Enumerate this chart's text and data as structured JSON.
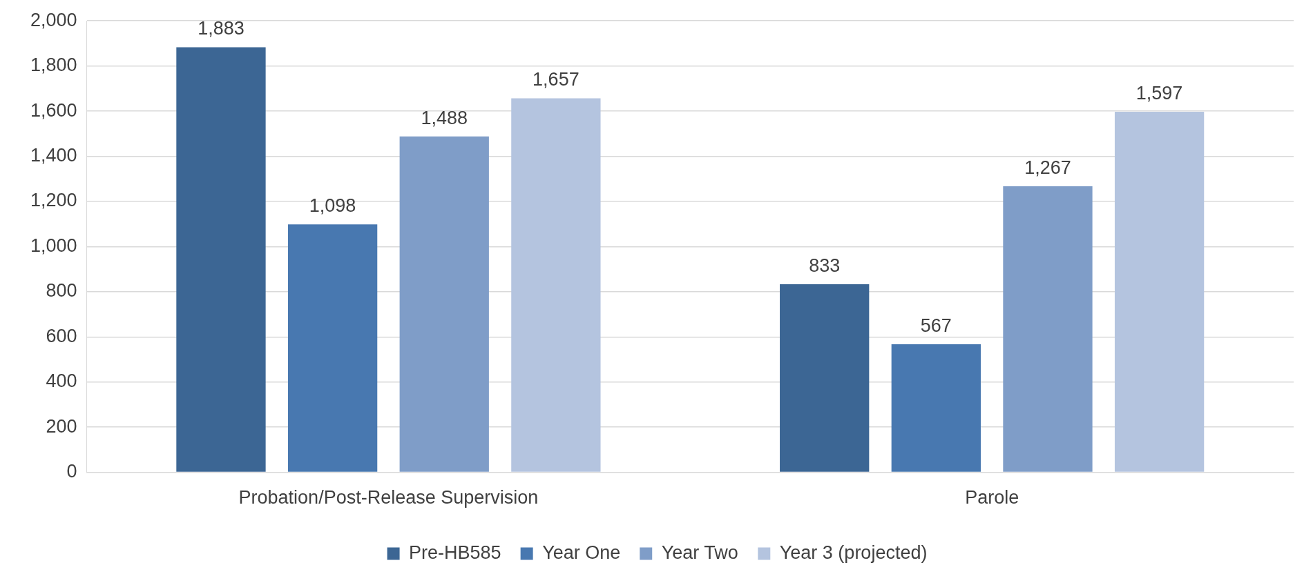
{
  "chart_data": {
    "type": "bar",
    "categories": [
      "Probation/Post-Release Supervision",
      "Parole"
    ],
    "series": [
      {
        "name": "Pre-HB585",
        "color": "#3c6694",
        "values": [
          1883,
          833
        ],
        "value_labels": [
          "1,883",
          "833"
        ]
      },
      {
        "name": "Year One",
        "color": "#4878b0",
        "values": [
          1098,
          567
        ],
        "value_labels": [
          "1,098",
          "567"
        ]
      },
      {
        "name": "Year Two",
        "color": "#7f9dc8",
        "values": [
          1488,
          1267
        ],
        "value_labels": [
          "1,488",
          "1,267"
        ]
      },
      {
        "name": "Year 3 (projected)",
        "color": "#b4c4df",
        "values": [
          1657,
          1597
        ],
        "value_labels": [
          "1,657",
          "1,597"
        ]
      }
    ],
    "ylim": [
      0,
      2000
    ],
    "yticks": [
      0,
      200,
      400,
      600,
      800,
      {
        "value": 1000,
        "label": "1,000"
      },
      {
        "value": 1200,
        "label": "1,200"
      },
      {
        "value": 1400,
        "label": "1,400"
      },
      {
        "value": 1600,
        "label": "1,600"
      },
      {
        "value": 1800,
        "label": "1,800"
      },
      {
        "value": 2000,
        "label": "2,000"
      }
    ],
    "grid": "y",
    "legend": "bottom"
  }
}
